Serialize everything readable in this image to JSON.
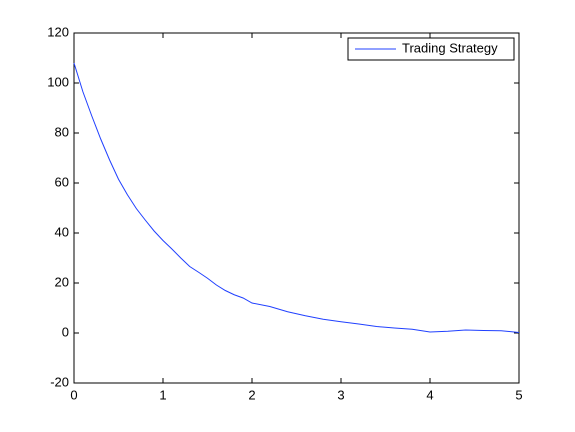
{
  "chart_data": {
    "type": "line",
    "x": [
      0,
      0.1,
      0.2,
      0.3,
      0.4,
      0.5,
      0.6,
      0.7,
      0.8,
      0.9,
      1.0,
      1.1,
      1.2,
      1.3,
      1.4,
      1.5,
      1.6,
      1.7,
      1.8,
      1.9,
      2.0,
      2.2,
      2.4,
      2.6,
      2.8,
      3.0,
      3.2,
      3.4,
      3.6,
      3.8,
      4.0,
      4.2,
      4.4,
      4.6,
      4.8,
      5.0
    ],
    "series": [
      {
        "name": "Trading Strategy",
        "color": "#2040ff",
        "values": [
          108,
          96.5,
          86.8,
          77.6,
          69.2,
          61.5,
          55.3,
          49.8,
          45.2,
          40.8,
          37.0,
          33.6,
          30.0,
          26.6,
          24.3,
          21.9,
          19.2,
          17.0,
          15.3,
          14.0,
          12.0,
          10.6,
          8.5,
          6.9,
          5.5,
          4.5,
          3.6,
          2.6,
          2.0,
          1.5,
          0.4,
          0.7,
          1.2,
          1.0,
          0.9,
          0.2
        ]
      }
    ],
    "xlim": [
      0,
      5
    ],
    "xticks": [
      0,
      1,
      2,
      3,
      4,
      5
    ],
    "ylim": [
      -20,
      120
    ],
    "yticks": [
      -20,
      0,
      20,
      40,
      60,
      80,
      100,
      120
    ],
    "legend": "top-right",
    "grid": false
  }
}
